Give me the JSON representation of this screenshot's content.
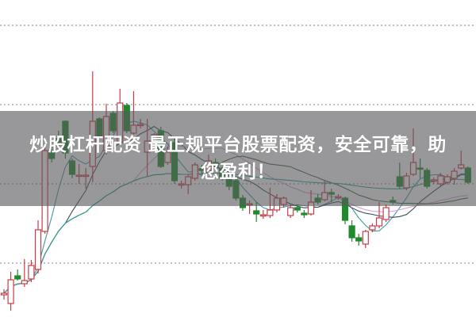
{
  "banner": {
    "line1": "炒股杠杆配资 最正规平台股票配资，安全可靠，助",
    "line2": "您盈利！"
  },
  "chart_data": {
    "type": "candlestick",
    "title": "",
    "xlabel": "",
    "ylabel": "",
    "ylim": [
      0,
      100
    ],
    "grid": "horizontal dotted",
    "grid_y": [
      92,
      67,
      42,
      17
    ],
    "colors": {
      "up": "#c83c46",
      "down": "#1f8a2e",
      "grid": "#9a9a9a"
    },
    "moving_averages": [
      {
        "period": 5,
        "color": "#3f9aa8"
      },
      {
        "period": 10,
        "color": "#3c4a5a"
      },
      {
        "period": 20,
        "color": "#d9a0dc"
      },
      {
        "period": 30,
        "color": "#3d6b3a"
      },
      {
        "period": 60,
        "color": "#2f9f9a"
      }
    ],
    "candles": [
      [
        7,
        8.75,
        5.5,
        7.5
      ],
      [
        4.25,
        14.25,
        2,
        11.75
      ],
      [
        13,
        15,
        11.5,
        12
      ],
      [
        10.5,
        18.25,
        9.5,
        11.5
      ],
      [
        12,
        18,
        11,
        16.25
      ],
      [
        15,
        30.5,
        13.75,
        27.5
      ],
      [
        27,
        53.75,
        26.25,
        52.5
      ],
      [
        52.5,
        56.25,
        48.75,
        50
      ],
      [
        56.25,
        58.75,
        52.5,
        55
      ],
      [
        61.75,
        62,
        50,
        51.75
      ],
      [
        49.25,
        50,
        43.75,
        45
      ],
      [
        44.5,
        48.25,
        42,
        44.75
      ],
      [
        44.5,
        47,
        40.5,
        44.75
      ],
      [
        47.5,
        77.5,
        42.5,
        61.75
      ],
      [
        62.5,
        63,
        56.25,
        57
      ],
      [
        52.5,
        67.25,
        51.25,
        63.25
      ],
      [
        64.25,
        65,
        58,
        58.75
      ],
      [
        55,
        72,
        54.5,
        67.5
      ],
      [
        66.75,
        67.5,
        58,
        58.75
      ],
      [
        58,
        71.25,
        57.5,
        60.5
      ],
      [
        60.5,
        62.5,
        59.5,
        60.75
      ],
      [
        52,
        62.5,
        44.5,
        55.5
      ],
      [
        55.5,
        58,
        54.5,
        57.5
      ],
      [
        58.75,
        60,
        47,
        47.5
      ],
      [
        48.75,
        53.75,
        48,
        52
      ],
      [
        55,
        56,
        42,
        43
      ],
      [
        41.75,
        43,
        40.5,
        42
      ],
      [
        41.75,
        45,
        38.75,
        44.25
      ],
      [
        43.75,
        48.75,
        43,
        48
      ],
      [
        46.75,
        48,
        45,
        46.25
      ],
      [
        46.25,
        51.25,
        45.5,
        49.25
      ],
      [
        48.75,
        50,
        46.5,
        47.5
      ],
      [
        46.75,
        47.5,
        43,
        43.75
      ],
      [
        43.75,
        45,
        40,
        41.25
      ],
      [
        43,
        43.75,
        36.75,
        37.5
      ],
      [
        37.5,
        38.5,
        33.5,
        34.5
      ],
      [
        35.5,
        36.75,
        32.5,
        35.75
      ],
      [
        33.5,
        36.25,
        30,
        32.5
      ],
      [
        32,
        33.75,
        31,
        32.25
      ],
      [
        32,
        40.75,
        31.25,
        33.75
      ],
      [
        33.75,
        38.75,
        33,
        37.5
      ],
      [
        35.5,
        38,
        34.5,
        37.5
      ],
      [
        32,
        35.5,
        31.25,
        34.5
      ],
      [
        34.5,
        35.5,
        33,
        33.75
      ],
      [
        32.75,
        33.75,
        31.25,
        32.25
      ],
      [
        32.5,
        40,
        32,
        36.25
      ],
      [
        37.5,
        38.75,
        35.5,
        36.25
      ],
      [
        37,
        43,
        36.5,
        39.25
      ],
      [
        39.25,
        40.5,
        36.25,
        38.75
      ],
      [
        37.75,
        38.75,
        37,
        38
      ],
      [
        37.5,
        38,
        29.25,
        30.5
      ],
      [
        28.75,
        30.5,
        23.75,
        25
      ],
      [
        25,
        26.25,
        22.5,
        24
      ],
      [
        23,
        27.5,
        21.75,
        27
      ],
      [
        27.5,
        29.5,
        26.75,
        28.75
      ],
      [
        28.75,
        36.25,
        28,
        31.25
      ],
      [
        30.75,
        35.5,
        30,
        34.5
      ],
      [
        36.75,
        38,
        35.5,
        36.5
      ],
      [
        44.25,
        48.75,
        40.5,
        41.25
      ],
      [
        40.75,
        45.5,
        40,
        44.5
      ],
      [
        45,
        59.5,
        44.5,
        48.75
      ],
      [
        47,
        50,
        43.75,
        46.75
      ],
      [
        46.25,
        47,
        40.5,
        41.25
      ],
      [
        43,
        44,
        42,
        43.25
      ],
      [
        42,
        45.5,
        41.5,
        44.5
      ],
      [
        42.5,
        45,
        41.75,
        44.25
      ],
      [
        43.75,
        47,
        41.75,
        46
      ],
      [
        47,
        52.5,
        46.5,
        48
      ],
      [
        47,
        47.5,
        42,
        42.5
      ]
    ]
  }
}
